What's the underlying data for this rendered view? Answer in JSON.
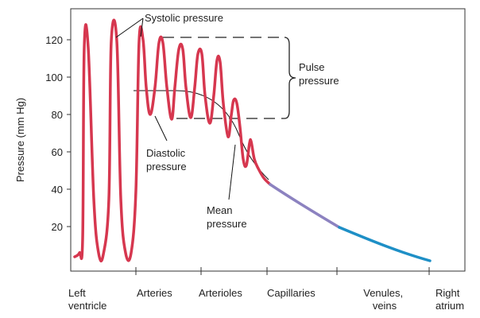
{
  "diagram": {
    "y_axis_label": "Pressure (mm Hg)",
    "y_ticks": [
      "120",
      "100",
      "80",
      "60",
      "40",
      "20"
    ],
    "categories": [
      {
        "lines": [
          "Left",
          "ventricle"
        ]
      },
      {
        "lines": [
          "Arteries"
        ]
      },
      {
        "lines": [
          "Arterioles"
        ]
      },
      {
        "lines": [
          "Capillaries"
        ]
      },
      {
        "lines": [
          "Venules,",
          "veins"
        ]
      },
      {
        "lines": [
          "Right",
          "atrium"
        ]
      }
    ],
    "annotations": {
      "systolic": "Systolic pressure",
      "pulse_line1": "Pulse",
      "pulse_line2": "pressure",
      "diastolic_line1": "Diastolic",
      "diastolic_line2": "pressure",
      "mean_line1": "Mean",
      "mean_line2": "pressure"
    },
    "colors": {
      "arterial": "#d6374f",
      "capillary": "#8c82c0",
      "venous": "#1e8fc6",
      "frame": "#333333"
    }
  }
}
